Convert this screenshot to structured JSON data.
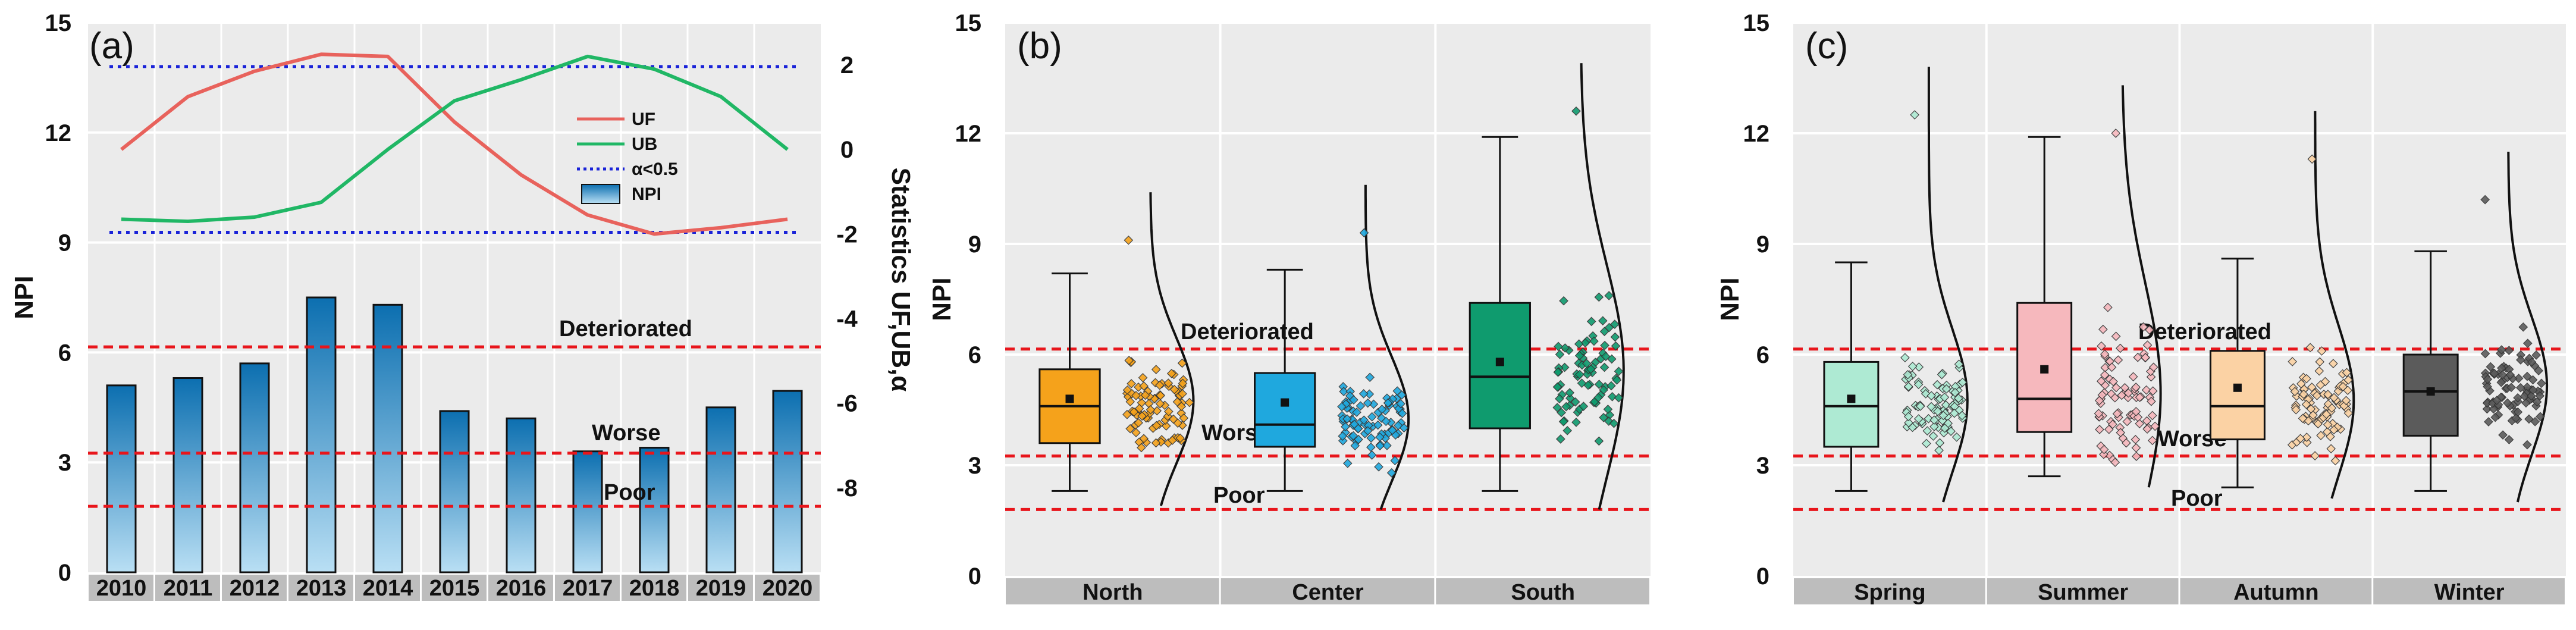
{
  "chart_data": [
    {
      "panel": "(a)",
      "type": "bar",
      "ylabel": "NPI",
      "y2label": "Statistics UF,UB,α",
      "ylim": [
        0,
        15
      ],
      "yticks": [
        0,
        3,
        6,
        9,
        12,
        15
      ],
      "y2lim": [
        -10,
        3
      ],
      "y2ticks": [
        -8,
        -6,
        -4,
        -2,
        0,
        2
      ],
      "categories": [
        "2010",
        "2011",
        "2012",
        "2013",
        "2014",
        "2015",
        "2016",
        "2017",
        "2018",
        "2019",
        "2020"
      ],
      "series": [
        {
          "name": "NPI",
          "type": "bar",
          "color": "#1a78b8",
          "values": [
            5.1,
            5.3,
            5.7,
            7.5,
            7.3,
            4.4,
            4.2,
            3.3,
            3.4,
            4.5,
            4.95
          ]
        },
        {
          "name": "UF",
          "type": "line",
          "axis": "y2",
          "color": "#e8625c",
          "values": [
            0.0,
            1.25,
            1.85,
            2.25,
            2.2,
            0.65,
            -0.6,
            -1.55,
            -2.0,
            -1.85,
            -1.65
          ]
        },
        {
          "name": "UB",
          "type": "line",
          "axis": "y2",
          "color": "#20b765",
          "values": [
            -1.65,
            -1.7,
            -1.6,
            -1.25,
            0.0,
            1.15,
            1.65,
            2.2,
            1.9,
            1.25,
            0.0
          ]
        }
      ],
      "significance": {
        "label": "α<0.5",
        "color": "#1a23d8",
        "values": [
          1.96,
          -1.96
        ]
      },
      "thresholds": [
        {
          "label": "Deteriorated",
          "value": 6.15
        },
        {
          "label": "Worse",
          "value": 3.25
        },
        {
          "label": "Poor",
          "value": 1.8
        }
      ],
      "legend": [
        "UF",
        "UB",
        "α<0.5",
        "NPI"
      ],
      "legend_position": "upper-right"
    },
    {
      "panel": "(b)",
      "type": "box",
      "ylabel": "NPI",
      "ylim": [
        0,
        15
      ],
      "yticks": [
        0,
        3,
        6,
        9,
        12,
        15
      ],
      "categories": [
        "North",
        "Center",
        "South"
      ],
      "boxes": [
        {
          "name": "North",
          "color": "#f5a21b",
          "whisker_low": 2.3,
          "q1": 3.6,
          "median": 4.6,
          "q3": 5.6,
          "whisker_high": 8.2,
          "mean": 4.8,
          "max_point": 9.1,
          "min_point": 2.2
        },
        {
          "name": "Center",
          "color": "#1fa8de",
          "whisker_low": 2.3,
          "q1": 3.5,
          "median": 4.1,
          "q3": 5.5,
          "whisker_high": 8.3,
          "mean": 4.7,
          "max_point": 9.3,
          "min_point": 2.1
        },
        {
          "name": "South",
          "color": "#0f9b6e",
          "whisker_low": 2.3,
          "q1": 4.0,
          "median": 5.4,
          "q3": 7.4,
          "whisker_high": 11.9,
          "mean": 5.8,
          "max_point": 12.6,
          "min_point": 2.1
        }
      ],
      "thresholds": [
        {
          "label": "Deteriorated",
          "value": 6.15
        },
        {
          "label": "Worse",
          "value": 3.25
        },
        {
          "label": "Poor",
          "value": 1.8
        }
      ]
    },
    {
      "panel": "(c)",
      "type": "box",
      "ylabel": "NPI",
      "ylim": [
        0,
        15
      ],
      "yticks": [
        0,
        3,
        6,
        9,
        12,
        15
      ],
      "categories": [
        "Spring",
        "Summer",
        "Autumn",
        "Winter"
      ],
      "boxes": [
        {
          "name": "Spring",
          "color": "#aeead3",
          "whisker_low": 2.3,
          "q1": 3.5,
          "median": 4.6,
          "q3": 5.8,
          "whisker_high": 8.5,
          "mean": 4.8,
          "max_point": 12.5,
          "min_point": 2.3
        },
        {
          "name": "Summer",
          "color": "#f6b8bd",
          "whisker_low": 2.7,
          "q1": 3.9,
          "median": 4.8,
          "q3": 7.4,
          "whisker_high": 11.9,
          "mean": 5.6,
          "max_point": 12.0,
          "min_point": 2.7
        },
        {
          "name": "Autumn",
          "color": "#fbd2a4",
          "whisker_low": 2.4,
          "q1": 3.7,
          "median": 4.6,
          "q3": 6.1,
          "whisker_high": 8.6,
          "mean": 5.1,
          "max_point": 11.3,
          "min_point": 2.4
        },
        {
          "name": "Winter",
          "color": "#5b5b5b",
          "whisker_low": 2.3,
          "q1": 3.8,
          "median": 5.0,
          "q3": 6.0,
          "whisker_high": 8.8,
          "mean": 5.0,
          "max_point": 10.2,
          "min_point": 2.3
        }
      ],
      "thresholds": [
        {
          "label": "Deteriorated",
          "value": 6.15
        },
        {
          "label": "Worse",
          "value": 3.25
        },
        {
          "label": "Poor",
          "value": 1.8
        }
      ]
    }
  ]
}
